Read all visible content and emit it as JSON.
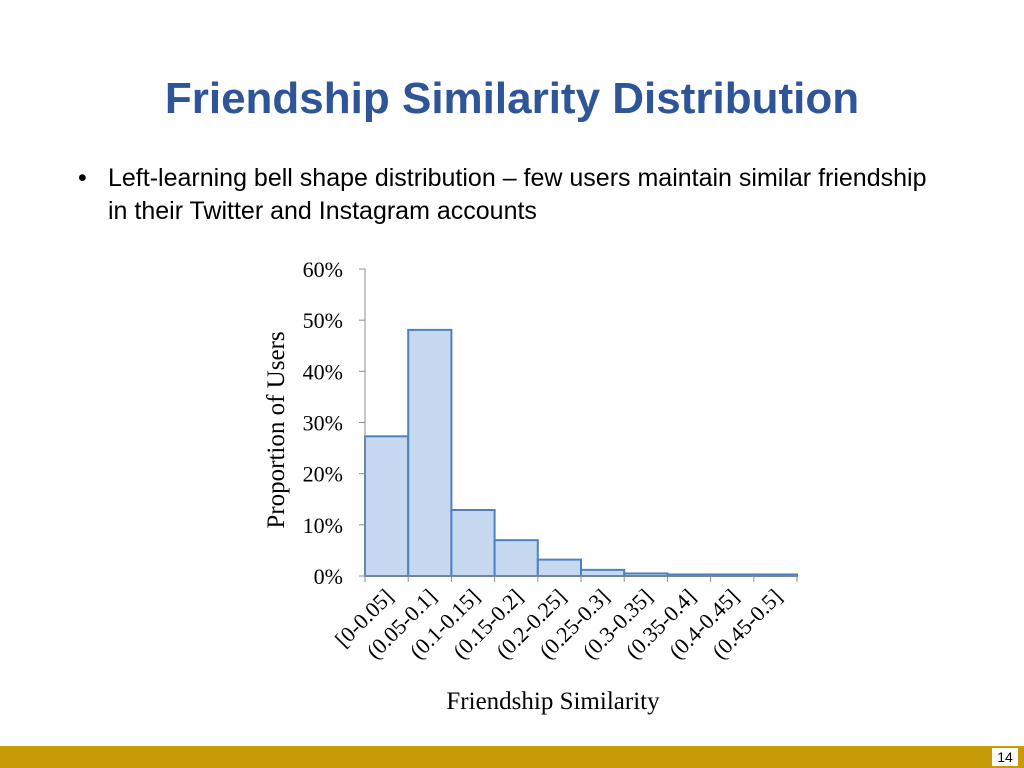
{
  "slide": {
    "title": "Friendship Similarity Distribution",
    "bullet_marker": "•",
    "bullet": "Left-learning bell shape distribution – few users maintain similar friendship in their Twitter and Instagram accounts",
    "page_number": "14"
  },
  "colors": {
    "title": "#2e5597",
    "bar_fill": "#c6d9f0",
    "bar_stroke": "#4f81bd",
    "footer": "#c79a07"
  },
  "chart_data": {
    "type": "bar",
    "categories": [
      "[0-0.05]",
      "(0.05-0.1]",
      "(0.1-0.15]",
      "(0.15-0.2]",
      "(0.2-0.25]",
      "(0.25-0.3]",
      "(0.3-0.35]",
      "(0.35-0.4]",
      "(0.4-0.45]",
      "(0.45-0.5]"
    ],
    "values": [
      27.3,
      48.1,
      12.9,
      7.0,
      3.2,
      1.2,
      0.5,
      0.3,
      0.3,
      0.3
    ],
    "xlabel": "Friendship Similarity",
    "ylabel": "Proportion of Users",
    "ylim": [
      0,
      60
    ],
    "yticks": [
      "0%",
      "10%",
      "20%",
      "30%",
      "40%",
      "50%",
      "60%"
    ],
    "grid": false,
    "legend": "none"
  }
}
